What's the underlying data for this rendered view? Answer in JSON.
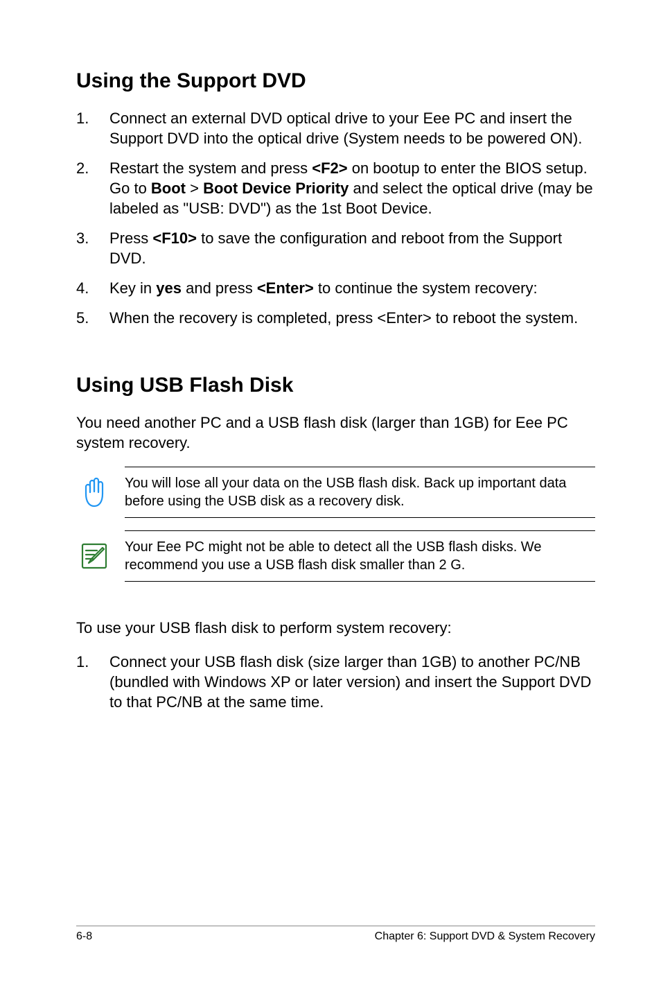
{
  "section1": {
    "title": "Using the Support DVD",
    "items": [
      {
        "num": "1.",
        "parts": [
          {
            "t": "Connect an external DVD optical drive to your Eee PC and insert the Support DVD into the optical drive (System needs to be powered ON)."
          }
        ]
      },
      {
        "num": "2.",
        "parts": [
          {
            "t": "Restart the system and press "
          },
          {
            "t": "<F2>",
            "b": true
          },
          {
            "t": " on bootup to enter the BIOS setup. Go to "
          },
          {
            "t": "Boot",
            "b": true
          },
          {
            "t": " > "
          },
          {
            "t": "Boot Device Priority",
            "b": true
          },
          {
            "t": " and select the optical drive (may be labeled as \"USB: DVD\") as the 1st Boot Device."
          }
        ]
      },
      {
        "num": "3.",
        "parts": [
          {
            "t": "Press "
          },
          {
            "t": "<F10>",
            "b": true
          },
          {
            "t": " to save the configuration and reboot from the Support DVD."
          }
        ]
      },
      {
        "num": "4.",
        "parts": [
          {
            "t": "Key in "
          },
          {
            "t": "yes",
            "b": true
          },
          {
            "t": " and press "
          },
          {
            "t": "<Enter>",
            "b": true
          },
          {
            "t": " to continue the system recovery:"
          }
        ]
      },
      {
        "num": "5.",
        "parts": [
          {
            "t": "When the recovery is completed, press <Enter> to reboot the system."
          }
        ]
      }
    ]
  },
  "section2": {
    "title": "Using USB Flash Disk",
    "intro": "You need another PC and a USB flash disk (larger than 1GB) for Eee PC system recovery.",
    "callout1": {
      "icon": "hand-stop-icon",
      "color": "#2196f3",
      "text": "You will lose all your data on the USB flash disk. Back up important data before using the USB disk as a recovery disk."
    },
    "callout2": {
      "icon": "note-pencil-icon",
      "color": "#2e7d32",
      "text": "Your Eee PC might not be able to detect all the USB flash disks. We recommend you use a USB flash disk smaller than 2 G."
    },
    "lead": "To use your USB flash disk to perform system recovery:",
    "items": [
      {
        "num": "1.",
        "parts": [
          {
            "t": "Connect your USB flash disk (size larger than 1GB) to another PC/NB (bundled with Windows XP or later version) and insert the Support DVD to that PC/NB at the same time."
          }
        ]
      }
    ]
  },
  "footer": {
    "left": "6-8",
    "right": "Chapter 6: Support DVD & System Recovery"
  }
}
